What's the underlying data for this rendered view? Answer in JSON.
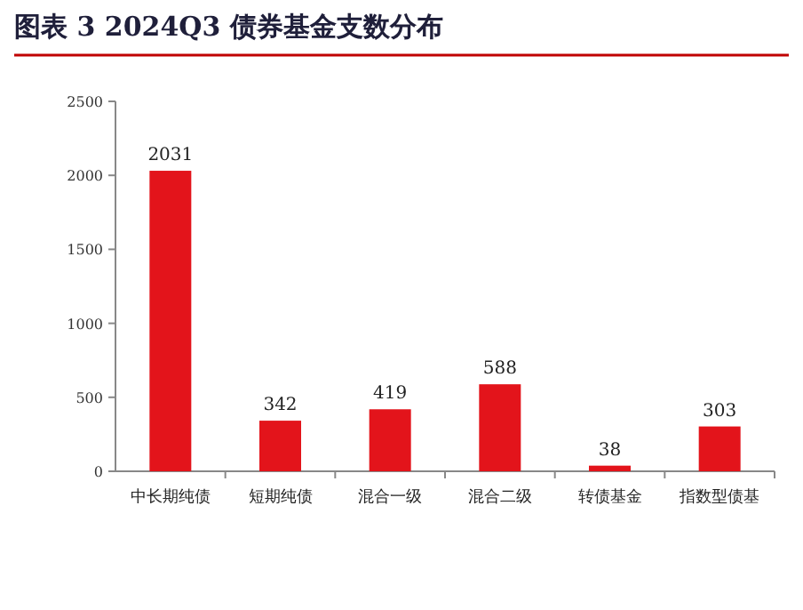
{
  "chart_data": {
    "type": "bar",
    "title": "图表 3   2024Q3 债券基金支数分布",
    "categories": [
      "中长期纯债",
      "短期纯债",
      "混合一级",
      "混合二级",
      "转债基金",
      "指数型债基"
    ],
    "values": [
      2031,
      342,
      419,
      588,
      38,
      303
    ],
    "color": "#e3141b",
    "ylim": [
      0,
      2500
    ],
    "yticks": [
      0,
      500,
      1000,
      1500,
      2000,
      2500
    ],
    "data_labels": true
  }
}
